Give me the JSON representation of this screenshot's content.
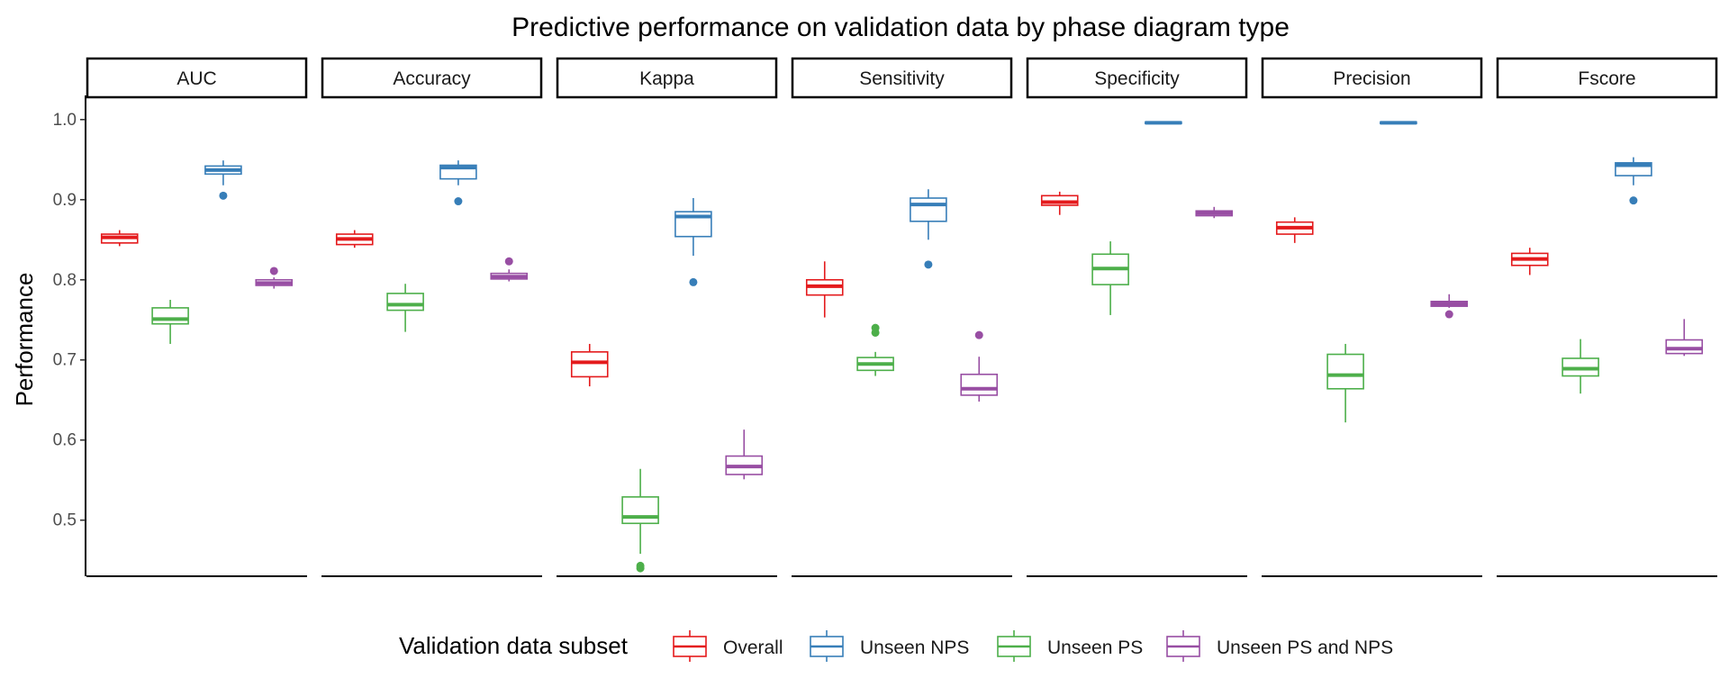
{
  "chart_data": {
    "type": "boxplot",
    "title": "Predictive performance on validation data by phase diagram type",
    "ylabel": "Performance",
    "ylim": [
      0.43,
      1.02
    ],
    "yticks": [
      0.5,
      0.6,
      0.7,
      0.8,
      0.9,
      1.0
    ],
    "ytick_labels": [
      "0.5",
      "0.6",
      "0.7",
      "0.8",
      "0.9",
      "1.0"
    ],
    "grid": false,
    "legend_position": "bottom",
    "legend_title": "Validation data subset",
    "panels": [
      "AUC",
      "Accuracy",
      "Kappa",
      "Sensitivity",
      "Specificity",
      "Precision",
      "Fscore"
    ],
    "series": [
      {
        "name": "Overall",
        "color": "#E41A1C"
      },
      {
        "name": "Unseen NPS",
        "color": "#377EB8"
      },
      {
        "name": "Unseen PS",
        "color": "#4DAF4A"
      },
      {
        "name": "Unseen PS and NPS",
        "color": "#984EA3"
      }
    ],
    "panel_data": [
      {
        "panel": "AUC",
        "boxes": [
          {
            "series": "Overall",
            "min": 0.842,
            "q1": 0.846,
            "median": 0.853,
            "q3": 0.857,
            "max": 0.862,
            "outliers": []
          },
          {
            "series": "Unseen PS",
            "min": 0.72,
            "q1": 0.745,
            "median": 0.751,
            "q3": 0.765,
            "max": 0.775,
            "outliers": []
          },
          {
            "series": "Unseen NPS",
            "min": 0.918,
            "q1": 0.932,
            "median": 0.937,
            "q3": 0.942,
            "max": 0.949,
            "outliers": [
              0.905
            ]
          },
          {
            "series": "Unseen PS and NPS",
            "min": 0.789,
            "q1": 0.793,
            "median": 0.796,
            "q3": 0.8,
            "max": 0.803,
            "outliers": [
              0.811
            ]
          }
        ]
      },
      {
        "panel": "Accuracy",
        "boxes": [
          {
            "series": "Overall",
            "min": 0.84,
            "q1": 0.844,
            "median": 0.851,
            "q3": 0.857,
            "max": 0.862,
            "outliers": []
          },
          {
            "series": "Unseen PS",
            "min": 0.735,
            "q1": 0.762,
            "median": 0.769,
            "q3": 0.783,
            "max": 0.795,
            "outliers": []
          },
          {
            "series": "Unseen NPS",
            "min": 0.918,
            "q1": 0.926,
            "median": 0.94,
            "q3": 0.943,
            "max": 0.949,
            "outliers": [
              0.898
            ]
          },
          {
            "series": "Unseen PS and NPS",
            "min": 0.798,
            "q1": 0.801,
            "median": 0.804,
            "q3": 0.808,
            "max": 0.813,
            "outliers": [
              0.823
            ]
          }
        ]
      },
      {
        "panel": "Kappa",
        "boxes": [
          {
            "series": "Overall",
            "min": 0.667,
            "q1": 0.679,
            "median": 0.697,
            "q3": 0.71,
            "max": 0.72,
            "outliers": []
          },
          {
            "series": "Unseen PS",
            "min": 0.458,
            "q1": 0.496,
            "median": 0.504,
            "q3": 0.529,
            "max": 0.564,
            "outliers": [
              0.443,
              0.44
            ]
          },
          {
            "series": "Unseen NPS",
            "min": 0.83,
            "q1": 0.854,
            "median": 0.879,
            "q3": 0.885,
            "max": 0.902,
            "outliers": [
              0.797
            ]
          },
          {
            "series": "Unseen PS and NPS",
            "min": 0.551,
            "q1": 0.557,
            "median": 0.567,
            "q3": 0.58,
            "max": 0.613,
            "outliers": []
          }
        ]
      },
      {
        "panel": "Sensitivity",
        "boxes": [
          {
            "series": "Overall",
            "min": 0.753,
            "q1": 0.781,
            "median": 0.792,
            "q3": 0.8,
            "max": 0.823,
            "outliers": []
          },
          {
            "series": "Unseen PS",
            "min": 0.68,
            "q1": 0.687,
            "median": 0.695,
            "q3": 0.703,
            "max": 0.71,
            "outliers": [
              0.74,
              0.734
            ]
          },
          {
            "series": "Unseen NPS",
            "min": 0.85,
            "q1": 0.873,
            "median": 0.894,
            "q3": 0.902,
            "max": 0.913,
            "outliers": [
              0.819
            ]
          },
          {
            "series": "Unseen PS and NPS",
            "min": 0.648,
            "q1": 0.656,
            "median": 0.664,
            "q3": 0.682,
            "max": 0.704,
            "outliers": [
              0.731
            ]
          }
        ]
      },
      {
        "panel": "Specificity",
        "boxes": [
          {
            "series": "Overall",
            "min": 0.881,
            "q1": 0.893,
            "median": 0.897,
            "q3": 0.905,
            "max": 0.91,
            "outliers": []
          },
          {
            "series": "Unseen PS",
            "min": 0.756,
            "q1": 0.794,
            "median": 0.814,
            "q3": 0.832,
            "max": 0.848,
            "outliers": []
          },
          {
            "series": "Unseen NPS",
            "min": 0.995,
            "q1": 0.995,
            "median": 0.996,
            "q3": 0.997,
            "max": 0.997,
            "outliers": []
          },
          {
            "series": "Unseen PS and NPS",
            "min": 0.877,
            "q1": 0.88,
            "median": 0.883,
            "q3": 0.886,
            "max": 0.891,
            "outliers": []
          }
        ]
      },
      {
        "panel": "Precision",
        "boxes": [
          {
            "series": "Overall",
            "min": 0.846,
            "q1": 0.857,
            "median": 0.865,
            "q3": 0.872,
            "max": 0.878,
            "outliers": []
          },
          {
            "series": "Unseen PS",
            "min": 0.622,
            "q1": 0.664,
            "median": 0.681,
            "q3": 0.707,
            "max": 0.72,
            "outliers": []
          },
          {
            "series": "Unseen NPS",
            "min": 0.995,
            "q1": 0.995,
            "median": 0.996,
            "q3": 0.997,
            "max": 0.997,
            "outliers": []
          },
          {
            "series": "Unseen PS and NPS",
            "min": 0.765,
            "q1": 0.767,
            "median": 0.77,
            "q3": 0.773,
            "max": 0.782,
            "outliers": [
              0.757
            ]
          }
        ]
      },
      {
        "panel": "Fscore",
        "boxes": [
          {
            "series": "Overall",
            "min": 0.806,
            "q1": 0.818,
            "median": 0.826,
            "q3": 0.833,
            "max": 0.84,
            "outliers": []
          },
          {
            "series": "Unseen PS",
            "min": 0.658,
            "q1": 0.68,
            "median": 0.689,
            "q3": 0.702,
            "max": 0.726,
            "outliers": []
          },
          {
            "series": "Unseen NPS",
            "min": 0.918,
            "q1": 0.93,
            "median": 0.943,
            "q3": 0.946,
            "max": 0.953,
            "outliers": [
              0.899
            ]
          },
          {
            "series": "Unseen PS and NPS",
            "min": 0.705,
            "q1": 0.708,
            "median": 0.714,
            "q3": 0.725,
            "max": 0.751,
            "outliers": []
          }
        ]
      }
    ]
  }
}
